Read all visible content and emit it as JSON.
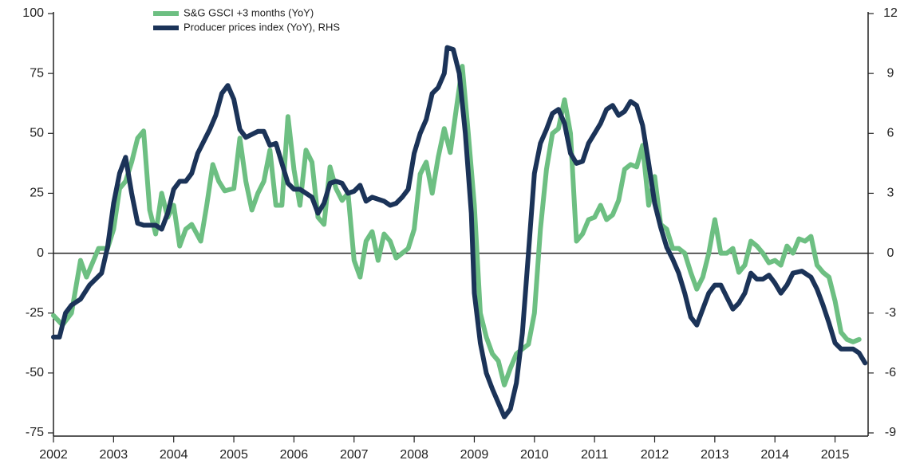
{
  "chart_data": {
    "type": "line",
    "xlim": [
      2002,
      2015.55
    ],
    "xticks": [
      2002,
      2003,
      2004,
      2005,
      2006,
      2007,
      2008,
      2009,
      2010,
      2011,
      2012,
      2013,
      2014,
      2015
    ],
    "ylim": [
      -75,
      100
    ],
    "yticks": [
      -75,
      -50,
      -25,
      0,
      25,
      50,
      75,
      100
    ],
    "y2lim": [
      -9,
      12
    ],
    "y2ticks": [
      -9,
      -6,
      -3,
      0,
      3,
      6,
      9,
      12
    ],
    "grid": false,
    "legend": "top",
    "series": [
      {
        "name": "S&G GSCI +3 months (YoY)",
        "color": "#6dbf82",
        "x": [
          2002.0,
          2002.15,
          2002.3,
          2002.45,
          2002.55,
          2002.75,
          2002.9,
          2003.0,
          2003.1,
          2003.2,
          2003.3,
          2003.4,
          2003.5,
          2003.6,
          2003.7,
          2003.8,
          2003.9,
          2004.0,
          2004.1,
          2004.2,
          2004.3,
          2004.45,
          2004.55,
          2004.65,
          2004.75,
          2004.85,
          2005.0,
          2005.1,
          2005.2,
          2005.3,
          2005.4,
          2005.5,
          2005.6,
          2005.7,
          2005.8,
          2005.9,
          2006.0,
          2006.1,
          2006.2,
          2006.3,
          2006.4,
          2006.5,
          2006.6,
          2006.7,
          2006.8,
          2006.9,
          2007.0,
          2007.1,
          2007.2,
          2007.3,
          2007.4,
          2007.5,
          2007.6,
          2007.7,
          2007.8,
          2007.9,
          2008.0,
          2008.1,
          2008.2,
          2008.3,
          2008.4,
          2008.5,
          2008.6,
          2008.7,
          2008.8,
          2008.9,
          2009.0,
          2009.1,
          2009.2,
          2009.3,
          2009.4,
          2009.5,
          2009.6,
          2009.7,
          2009.8,
          2009.9,
          2010.0,
          2010.1,
          2010.2,
          2010.3,
          2010.4,
          2010.5,
          2010.6,
          2010.7,
          2010.8,
          2010.9,
          2011.0,
          2011.1,
          2011.2,
          2011.3,
          2011.4,
          2011.5,
          2011.6,
          2011.7,
          2011.8,
          2011.9,
          2012.0,
          2012.1,
          2012.2,
          2012.3,
          2012.4,
          2012.5,
          2012.6,
          2012.7,
          2012.8,
          2012.9,
          2013.0,
          2013.1,
          2013.2,
          2013.3,
          2013.4,
          2013.5,
          2013.6,
          2013.7,
          2013.8,
          2013.9,
          2014.0,
          2014.1,
          2014.2,
          2014.3,
          2014.4,
          2014.5,
          2014.6,
          2014.7,
          2014.8,
          2014.9,
          2015.0,
          2015.1,
          2015.2,
          2015.3,
          2015.4
        ],
        "values": [
          -26,
          -30,
          -25,
          -3,
          -10,
          2,
          2,
          10,
          27,
          30,
          38,
          48,
          51,
          18,
          8,
          25,
          15,
          20,
          3,
          10,
          12,
          5,
          20,
          37,
          30,
          26,
          27,
          48,
          30,
          18,
          25,
          30,
          43,
          20,
          20,
          57,
          35,
          20,
          43,
          38,
          15,
          12,
          36,
          27,
          22,
          25,
          -3,
          -10,
          5,
          9,
          -3,
          8,
          5,
          -2,
          0,
          2,
          10,
          33,
          38,
          25,
          40,
          52,
          42,
          60,
          78,
          50,
          20,
          -25,
          -35,
          -42,
          -45,
          -55,
          -48,
          -42,
          -40,
          -38,
          -25,
          10,
          35,
          50,
          52,
          64,
          50,
          5,
          8,
          14,
          15,
          20,
          14,
          16,
          22,
          35,
          37,
          36,
          45,
          20,
          32,
          12,
          10,
          2,
          2,
          0,
          -8,
          -15,
          -10,
          0,
          14,
          0,
          0,
          2,
          -8,
          -5,
          5,
          3,
          0,
          -4,
          -3,
          -5,
          3,
          0,
          6,
          5,
          7,
          -5,
          -8,
          -10,
          -20,
          -33,
          -36,
          -37,
          -36
        ]
      },
      {
        "name": "Producer prices index (YoY), RHS",
        "color": "#1b3358",
        "axis": "y2",
        "x": [
          2002.0,
          2002.1,
          2002.2,
          2002.3,
          2002.45,
          2002.6,
          2002.8,
          2002.9,
          2003.0,
          2003.1,
          2003.2,
          2003.3,
          2003.4,
          2003.5,
          2003.7,
          2003.8,
          2003.9,
          2004.0,
          2004.1,
          2004.2,
          2004.3,
          2004.4,
          2004.6,
          2004.7,
          2004.8,
          2004.9,
          2005.0,
          2005.1,
          2005.2,
          2005.4,
          2005.5,
          2005.6,
          2005.7,
          2005.8,
          2005.9,
          2006.0,
          2006.1,
          2006.2,
          2006.3,
          2006.4,
          2006.5,
          2006.6,
          2006.7,
          2006.8,
          2006.9,
          2007.0,
          2007.1,
          2007.2,
          2007.3,
          2007.4,
          2007.5,
          2007.6,
          2007.7,
          2007.8,
          2007.9,
          2008.0,
          2008.1,
          2008.2,
          2008.3,
          2008.4,
          2008.5,
          2008.55,
          2008.65,
          2008.75,
          2008.85,
          2008.95,
          2009.0,
          2009.1,
          2009.2,
          2009.3,
          2009.4,
          2009.5,
          2009.6,
          2009.7,
          2009.8,
          2009.9,
          2010.0,
          2010.1,
          2010.2,
          2010.3,
          2010.4,
          2010.5,
          2010.6,
          2010.7,
          2010.8,
          2010.9,
          2011.0,
          2011.1,
          2011.2,
          2011.3,
          2011.4,
          2011.5,
          2011.6,
          2011.7,
          2011.8,
          2011.9,
          2012.0,
          2012.1,
          2012.2,
          2012.3,
          2012.4,
          2012.5,
          2012.6,
          2012.7,
          2012.8,
          2012.9,
          2013.0,
          2013.1,
          2013.2,
          2013.3,
          2013.4,
          2013.5,
          2013.6,
          2013.7,
          2013.8,
          2013.9,
          2014.0,
          2014.1,
          2014.2,
          2014.3,
          2014.45,
          2014.6,
          2014.7,
          2014.8,
          2014.9,
          2015.0,
          2015.1,
          2015.2,
          2015.3,
          2015.4,
          2015.5
        ],
        "values": [
          -4.2,
          -4.2,
          -3,
          -2.6,
          -2.3,
          -1.6,
          -1.0,
          0.3,
          2.5,
          4.0,
          4.8,
          3.0,
          1.5,
          1.4,
          1.4,
          1.2,
          2,
          3.2,
          3.6,
          3.6,
          4.0,
          5.0,
          6.2,
          6.9,
          8.0,
          8.4,
          7.7,
          6.2,
          5.8,
          6.1,
          6.1,
          5.4,
          5.5,
          4.5,
          3.5,
          3.2,
          3.2,
          3.0,
          2.8,
          2.0,
          2.5,
          3.5,
          3.6,
          3.5,
          3.0,
          3.1,
          3.4,
          2.6,
          2.8,
          2.7,
          2.6,
          2.4,
          2.5,
          2.8,
          3.2,
          5.0,
          6.0,
          6.7,
          8.0,
          8.3,
          9.0,
          10.3,
          10.2,
          9.0,
          6.0,
          2.0,
          -2.0,
          -4.5,
          -6.0,
          -6.8,
          -7.5,
          -8.2,
          -7.8,
          -6.5,
          -4.0,
          0,
          4.0,
          5.5,
          6.2,
          7.0,
          7.2,
          6.5,
          5.0,
          4.5,
          4.6,
          5.5,
          6.0,
          6.5,
          7.2,
          7.4,
          6.9,
          7.1,
          7.6,
          7.4,
          6.4,
          4.5,
          2.5,
          1.3,
          0.3,
          -0.3,
          -1.0,
          -2.0,
          -3.2,
          -3.6,
          -2.8,
          -2.0,
          -1.6,
          -1.6,
          -2.2,
          -2.8,
          -2.5,
          -2.0,
          -1.0,
          -1.3,
          -1.3,
          -1.1,
          -1.5,
          -2.0,
          -1.6,
          -1.0,
          -0.9,
          -1.2,
          -1.8,
          -2.6,
          -3.5,
          -4.5,
          -4.8,
          -4.8,
          -4.8,
          -5.0,
          -5.5
        ]
      }
    ]
  }
}
